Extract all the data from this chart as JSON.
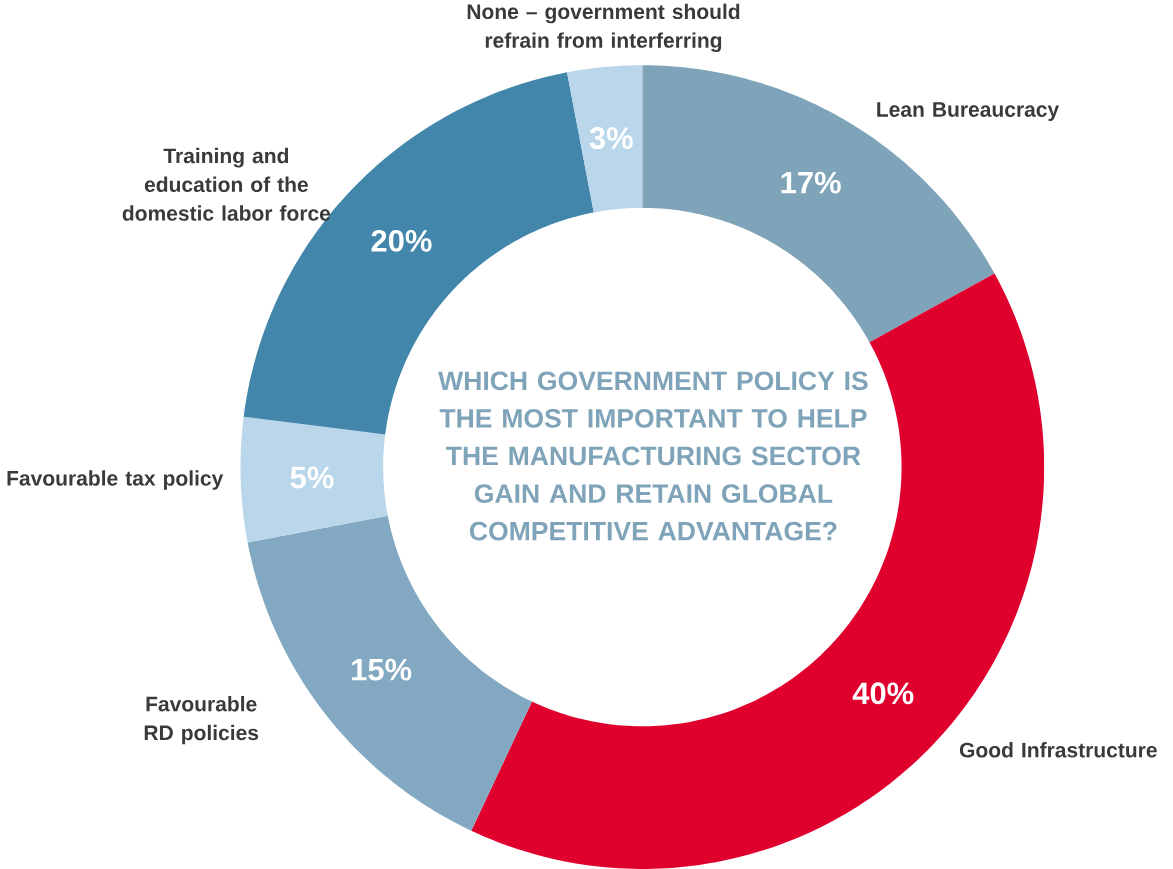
{
  "chart_data": {
    "type": "donut",
    "title": "WHICH GOVERNMENT POLICY IS THE MOST IMPORTANT TO HELP THE MANUFACTURING SECTOR GAIN AND RETAIN GLOBAL COMPETITIVE ADVANTAGE?",
    "categories": [
      "Lean Bureaucracy",
      "Good Infrastructure",
      "Favourable RD policies",
      "Favourable tax policy",
      "Training and education of the domestic labor force",
      "None – government should refrain from interferring"
    ],
    "values": [
      17,
      40,
      15,
      5,
      20,
      3
    ],
    "colors": [
      "#7fa3b8",
      "#e0002d",
      "#83a9c2",
      "#b9d6ea",
      "#4287ab",
      "#b9d6ea"
    ],
    "value_labels": [
      "17%",
      "40%",
      "15%",
      "5%",
      "20%",
      "3%"
    ]
  }
}
